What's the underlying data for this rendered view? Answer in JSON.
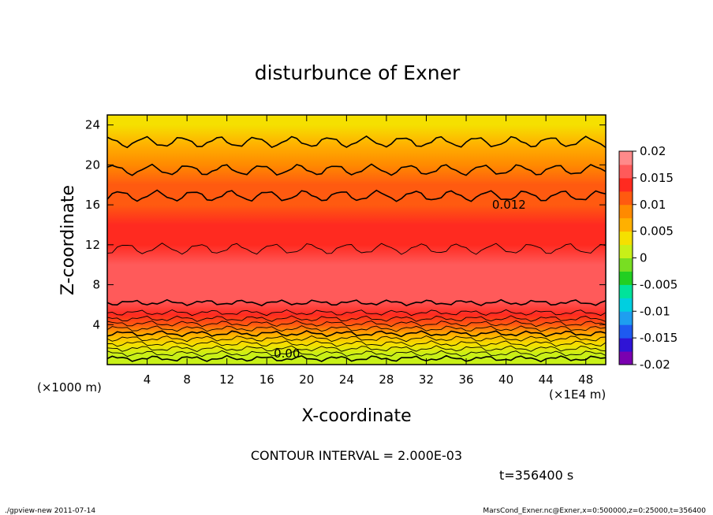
{
  "chart_data": {
    "type": "heatmap",
    "title": "disturbunce of Exner",
    "xlabel": "X-coordinate",
    "ylabel": "Z-coordinate",
    "x_unit_left": "(×1000 m)",
    "x_unit_right": "(×1E4 m)",
    "x_ticks": [
      4,
      8,
      12,
      16,
      20,
      24,
      28,
      32,
      36,
      40,
      44,
      48
    ],
    "y_ticks": [
      4,
      8,
      12,
      16,
      20,
      24
    ],
    "xlim": [
      0,
      50
    ],
    "ylim": [
      0,
      25
    ],
    "contour_interval_text": "CONTOUR INTERVAL = 2.000E-03",
    "time_text": "t=356400 s",
    "contour_labels": [
      {
        "text": "0.012",
        "x": 38.6,
        "y": 15.6
      },
      {
        "text": "0.00",
        "x": 16.7,
        "y": 0.7
      }
    ],
    "colorbar": {
      "min": -0.02,
      "max": 0.02,
      "tick_labels": [
        "0.02",
        "0.015",
        "0.01",
        "0.005",
        "0",
        "-0.005",
        "-0.01",
        "-0.015",
        "-0.02"
      ],
      "tick_values": [
        0.02,
        0.015,
        0.01,
        0.005,
        0,
        -0.005,
        -0.01,
        -0.015,
        -0.02
      ],
      "colors": [
        "#7a00b0",
        "#2f14d6",
        "#1e5af0",
        "#1e9ef0",
        "#00cfe0",
        "#00e39a",
        "#22cf22",
        "#78de22",
        "#c8f018",
        "#f5e000",
        "#ffb000",
        "#ff8a00",
        "#ff5a10",
        "#ff2a20",
        "#ff5a5a",
        "#ff8a8a"
      ]
    },
    "profile": [
      {
        "z": 0.0,
        "value": 0.0
      },
      {
        "z": 1.0,
        "value": 0.002
      },
      {
        "z": 2.0,
        "value": 0.004
      },
      {
        "z": 3.0,
        "value": 0.006
      },
      {
        "z": 4.0,
        "value": 0.01
      },
      {
        "z": 5.0,
        "value": 0.014
      },
      {
        "z": 6.5,
        "value": 0.016
      },
      {
        "z": 8.0,
        "value": 0.017
      },
      {
        "z": 10.0,
        "value": 0.016
      },
      {
        "z": 12.0,
        "value": 0.014
      },
      {
        "z": 14.0,
        "value": 0.013
      },
      {
        "z": 16.0,
        "value": 0.012
      },
      {
        "z": 18.0,
        "value": 0.01
      },
      {
        "z": 20.0,
        "value": 0.008
      },
      {
        "z": 22.0,
        "value": 0.006
      },
      {
        "z": 24.0,
        "value": 0.004
      },
      {
        "z": 25.0,
        "value": 0.003
      }
    ]
  },
  "footer": {
    "left": "./gpview-new  2011-07-14",
    "right": "MarsCond_Exner.nc@Exner,x=0:500000,z=0:25000,t=356400"
  }
}
